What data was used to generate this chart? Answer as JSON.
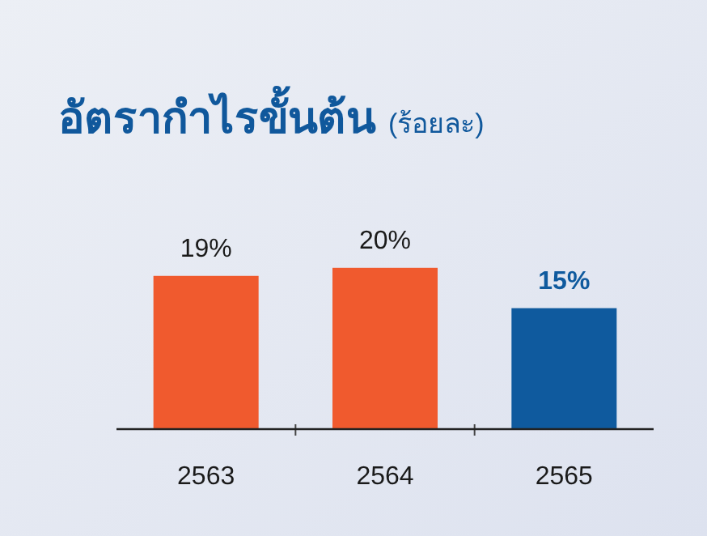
{
  "chart_data": {
    "type": "bar",
    "title": "อัตรากำไรขั้นต้น",
    "subtitle": "(ร้อยละ)",
    "categories": [
      "2563",
      "2564",
      "2565"
    ],
    "values": [
      19,
      20,
      15
    ],
    "value_labels": [
      "19%",
      "20%",
      "15%"
    ],
    "colors": [
      "#f05a2e",
      "#f05a2e",
      "#0f5a9e"
    ]
  }
}
